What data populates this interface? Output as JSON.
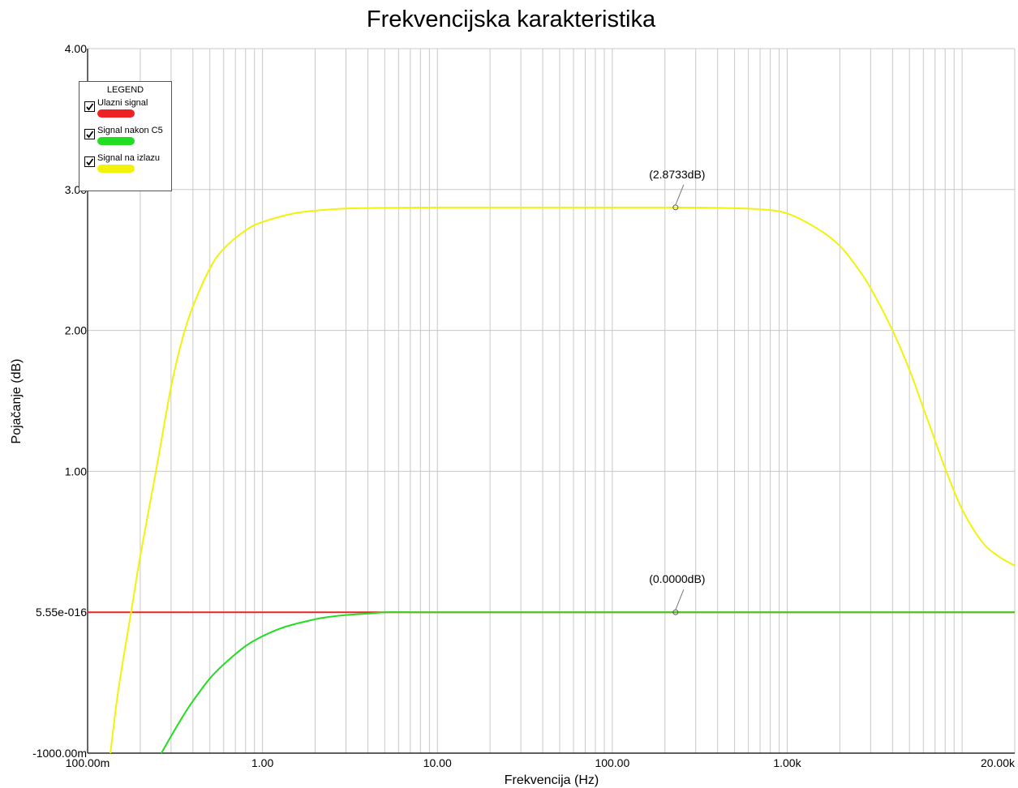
{
  "chart_data": {
    "type": "line",
    "title": "Frekvencijska karakteristika",
    "xlabel": "Frekvencija (Hz)",
    "ylabel": "Pojačanje (dB)",
    "x_scale": "log",
    "xlim": [
      0.1,
      20000
    ],
    "ylim": [
      -1,
      4
    ],
    "x_ticks": [
      {
        "value": 0.1,
        "label": "100.00m"
      },
      {
        "value": 1,
        "label": "1.00"
      },
      {
        "value": 10,
        "label": "10.00"
      },
      {
        "value": 100,
        "label": "100.00"
      },
      {
        "value": 1000,
        "label": "1.00k"
      },
      {
        "value": 20000,
        "label": "20.00k"
      }
    ],
    "y_ticks": [
      {
        "value": -1,
        "label": "-1000.00m"
      },
      {
        "value": 0,
        "label": "5.55e-016"
      },
      {
        "value": 1,
        "label": "1.00"
      },
      {
        "value": 2,
        "label": "2.00"
      },
      {
        "value": 3,
        "label": "3.00"
      },
      {
        "value": 4,
        "label": "4.00"
      }
    ],
    "grid": true,
    "legend": {
      "title": "LEGEND",
      "position": "top-left",
      "items": [
        {
          "label": "Ulazni signal",
          "color": "#ee2222",
          "checked": true
        },
        {
          "label": "Signal nakon C5",
          "color": "#22dd22",
          "checked": true
        },
        {
          "label": "Signal na izlazu",
          "color": "#f2f20a",
          "checked": true
        }
      ]
    },
    "series": [
      {
        "color": "#ee2222",
        "x": [
          0.1,
          0.2,
          0.5,
          1,
          2,
          3,
          4,
          5,
          10,
          100,
          1000,
          10000,
          20000
        ],
        "y": [
          0,
          0,
          0,
          0,
          0,
          0,
          0,
          0,
          0,
          0,
          0,
          0,
          0
        ]
      },
      {
        "color": "#22dd22",
        "x": [
          0.264,
          0.3,
          0.35,
          0.4,
          0.5,
          0.6,
          0.8,
          1.0,
          1.3,
          1.7,
          2.2,
          3.0,
          4.0,
          5.0,
          7.0,
          10,
          100,
          1000,
          10000,
          20000
        ],
        "y": [
          -1.0,
          -0.88,
          -0.74,
          -0.63,
          -0.47,
          -0.37,
          -0.24,
          -0.17,
          -0.11,
          -0.07,
          -0.04,
          -0.02,
          -0.01,
          0,
          0,
          0,
          0,
          0,
          0,
          0
        ]
      },
      {
        "color": "#f2f20a",
        "x": [
          0.135,
          0.15,
          0.18,
          0.2,
          0.25,
          0.3,
          0.35,
          0.4,
          0.5,
          0.6,
          0.8,
          1.0,
          1.5,
          2,
          3,
          5,
          10,
          30,
          100,
          230,
          400,
          700,
          1000,
          1500,
          2000,
          2500,
          3000,
          4000,
          5000,
          6000,
          7000,
          8000,
          10000,
          13000,
          16000,
          20000
        ],
        "y": [
          -1.0,
          -0.55,
          0.05,
          0.4,
          1.05,
          1.6,
          1.95,
          2.17,
          2.44,
          2.58,
          2.71,
          2.77,
          2.83,
          2.85,
          2.865,
          2.87,
          2.873,
          2.8733,
          2.8733,
          2.8733,
          2.87,
          2.86,
          2.83,
          2.72,
          2.6,
          2.45,
          2.3,
          2.0,
          1.72,
          1.45,
          1.22,
          1.02,
          0.73,
          0.5,
          0.4,
          0.33
        ]
      }
    ],
    "annotations": [
      {
        "x": 230,
        "y": 2.8733,
        "text": "(2.8733dB)"
      },
      {
        "x": 230,
        "y": 0,
        "text": "(0.0000dB)"
      }
    ]
  }
}
